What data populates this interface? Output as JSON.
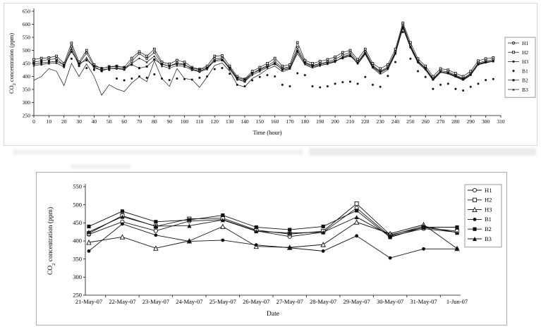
{
  "figure": {
    "background": "#ffffff",
    "line_color": "#111111",
    "legend_labels": [
      "H1",
      "H2",
      "H3",
      "B1",
      "B2",
      "B3"
    ]
  },
  "chart_data": [
    {
      "type": "line",
      "title": "",
      "xlabel": "Time (hour)",
      "ylabel": "CO2 concentration (ppm)",
      "ylim": [
        250,
        650
      ],
      "yticks": [
        250,
        300,
        350,
        400,
        450,
        500,
        550,
        600,
        650
      ],
      "xlim": [
        0,
        310
      ],
      "xticks": [
        0,
        10,
        20,
        30,
        40,
        50,
        60,
        70,
        80,
        90,
        100,
        110,
        120,
        130,
        140,
        150,
        160,
        170,
        180,
        190,
        200,
        210,
        220,
        230,
        240,
        250,
        260,
        270,
        280,
        290,
        300,
        310
      ],
      "x_start": 0,
      "x_step": 5,
      "legend_position": "right",
      "grid": false,
      "series": [
        {
          "name": "H1",
          "marker": "circle-open",
          "marker_size": 1.4,
          "line": true,
          "values": [
            455,
            460,
            465,
            468,
            442,
            515,
            448,
            490,
            438,
            422,
            430,
            432,
            428,
            458,
            488,
            468,
            492,
            448,
            440,
            452,
            446,
            428,
            420,
            432,
            468,
            470,
            432,
            392,
            382,
            412,
            428,
            442,
            458,
            432,
            438,
            512,
            455,
            442,
            450,
            456,
            466,
            482,
            492,
            456,
            495,
            442,
            420,
            436,
            495,
            598,
            520,
            460,
            432,
            392,
            422,
            418,
            405,
            392,
            412,
            452,
            460,
            465
          ]
        },
        {
          "name": "H2",
          "marker": "square-open",
          "marker_size": 1.4,
          "line": true,
          "values": [
            465,
            470,
            472,
            478,
            450,
            528,
            455,
            500,
            445,
            430,
            438,
            440,
            435,
            470,
            495,
            478,
            505,
            455,
            448,
            462,
            455,
            435,
            428,
            440,
            478,
            480,
            440,
            400,
            390,
            420,
            435,
            450,
            470,
            440,
            445,
            530,
            462,
            450,
            458,
            465,
            475,
            492,
            500,
            465,
            505,
            450,
            430,
            445,
            505,
            605,
            530,
            468,
            440,
            400,
            430,
            425,
            412,
            400,
            420,
            460,
            468,
            472
          ]
        },
        {
          "name": "H3",
          "marker": "none",
          "marker_size": 1.2,
          "line": true,
          "values": [
            385,
            400,
            430,
            420,
            365,
            450,
            400,
            448,
            400,
            328,
            368,
            352,
            342,
            375,
            398,
            380,
            460,
            392,
            362,
            430,
            392,
            388,
            358,
            398,
            442,
            452,
            420,
            368,
            360,
            392,
            408,
            428,
            440,
            418,
            428,
            488,
            445,
            432,
            442,
            448,
            458,
            472,
            482,
            448,
            485,
            432,
            408,
            425,
            485,
            590,
            510,
            452,
            425,
            385,
            415,
            410,
            398,
            385,
            405,
            445,
            452,
            458
          ]
        },
        {
          "name": "B1",
          "marker": "dot",
          "marker_size": 1.5,
          "line": false,
          "values": [
            452,
            458,
            460,
            462,
            438,
            468,
            440,
            432,
            425,
            420,
            425,
            392,
            385,
            392,
            400,
            395,
            408,
            392,
            386,
            392,
            390,
            388,
            395,
            400,
            428,
            432,
            410,
            368,
            362,
            385,
            398,
            405,
            400,
            368,
            362,
            412,
            405,
            362,
            358,
            362,
            372,
            378,
            380,
            372,
            398,
            368,
            360,
            402,
            455,
            570,
            468,
            420,
            398,
            352,
            368,
            372,
            352,
            346,
            360,
            372,
            386,
            390
          ]
        },
        {
          "name": "B2",
          "marker": "square-filled",
          "marker_size": 1.5,
          "line": true,
          "values": [
            448,
            452,
            455,
            458,
            445,
            495,
            450,
            462,
            440,
            432,
            436,
            438,
            434,
            445,
            432,
            438,
            465,
            446,
            440,
            448,
            444,
            432,
            426,
            434,
            458,
            462,
            434,
            395,
            388,
            412,
            425,
            438,
            448,
            428,
            434,
            495,
            452,
            440,
            446,
            452,
            460,
            470,
            478,
            452,
            488,
            438,
            418,
            432,
            488,
            585,
            512,
            455,
            430,
            388,
            418,
            414,
            402,
            390,
            408,
            448,
            456,
            460
          ]
        },
        {
          "name": "B3",
          "marker": "triangle-filled",
          "marker_size": 1.5,
          "line": true,
          "values": [
            442,
            446,
            450,
            452,
            436,
            505,
            442,
            472,
            432,
            425,
            430,
            430,
            426,
            450,
            470,
            455,
            478,
            440,
            432,
            442,
            438,
            425,
            418,
            428,
            462,
            466,
            428,
            388,
            380,
            406,
            420,
            434,
            452,
            425,
            430,
            502,
            448,
            436,
            442,
            448,
            456,
            475,
            485,
            450,
            492,
            435,
            414,
            430,
            492,
            592,
            515,
            458,
            428,
            390,
            418,
            412,
            400,
            388,
            406,
            446,
            454,
            458
          ]
        }
      ]
    },
    {
      "type": "line",
      "title": "",
      "xlabel": "Date",
      "ylabel": "CO2 concentration (ppm)",
      "ylim": [
        250,
        550
      ],
      "yticks": [
        250,
        300,
        350,
        400,
        450,
        500,
        550
      ],
      "categories": [
        "21-May-07",
        "22-May-07",
        "23-May-07",
        "24-May-07",
        "25-May-07",
        "26-May-07",
        "27-May-07",
        "28-May-07",
        "29-May-07",
        "30-May-07",
        "31-May-07",
        "1-Jun-07"
      ],
      "legend_position": "right",
      "grid": false,
      "series": [
        {
          "name": "H1",
          "marker": "circle-open",
          "marker_size": 2.6,
          "line": true,
          "values": [
            418,
            453,
            428,
            455,
            459,
            428,
            412,
            424,
            491,
            413,
            434,
            424
          ]
        },
        {
          "name": "H2",
          "marker": "square-open",
          "marker_size": 2.6,
          "line": true,
          "values": [
            421,
            470,
            440,
            461,
            463,
            430,
            419,
            427,
            503,
            417,
            437,
            427
          ]
        },
        {
          "name": "H3",
          "marker": "triangle-open",
          "marker_size": 3.0,
          "line": true,
          "values": [
            396,
            411,
            380,
            400,
            440,
            385,
            382,
            390,
            452,
            420,
            445,
            379
          ]
        },
        {
          "name": "B1",
          "marker": "circle-filled",
          "marker_size": 2.4,
          "line": true,
          "values": [
            372,
            447,
            416,
            399,
            402,
            389,
            381,
            372,
            414,
            353,
            378,
            378
          ]
        },
        {
          "name": "B2",
          "marker": "square-filled",
          "marker_size": 2.6,
          "line": true,
          "values": [
            440,
            482,
            453,
            458,
            471,
            438,
            431,
            440,
            484,
            410,
            438,
            438
          ]
        },
        {
          "name": "B3",
          "marker": "triangle-filled",
          "marker_size": 3.0,
          "line": true,
          "values": [
            425,
            467,
            441,
            442,
            458,
            427,
            422,
            424,
            466,
            415,
            441,
            423
          ]
        }
      ]
    }
  ]
}
